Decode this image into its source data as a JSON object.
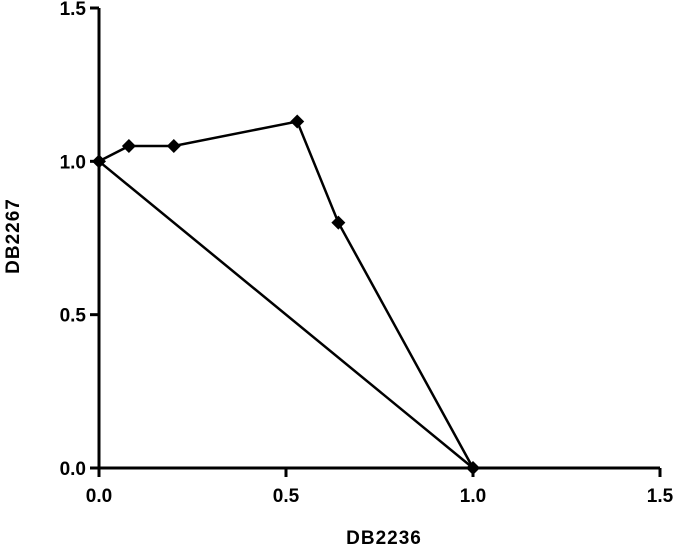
{
  "chart_data": {
    "type": "line",
    "title": "",
    "xlabel": "DB2236",
    "ylabel": "DB2267",
    "xlim": [
      0,
      1.5
    ],
    "ylim": [
      0,
      1.5
    ],
    "x_ticks": [
      "0.0",
      "0.5",
      "1.0",
      "1.5"
    ],
    "y_ticks": [
      "0.0",
      "0.5",
      "1.0",
      "1.5"
    ],
    "grid": false,
    "legend": "none",
    "series": [
      {
        "marker": "diamond",
        "color": "#000000",
        "points": [
          {
            "x": 0.0,
            "y": 1.0
          },
          {
            "x": 0.08,
            "y": 1.05
          },
          {
            "x": 0.2,
            "y": 1.05
          },
          {
            "x": 0.53,
            "y": 1.13
          },
          {
            "x": 0.64,
            "y": 0.8
          },
          {
            "x": 1.0,
            "y": 0.0
          }
        ]
      },
      {
        "marker": "none",
        "color": "#000000",
        "points": [
          {
            "x": 0.0,
            "y": 1.0
          },
          {
            "x": 1.0,
            "y": 0.0
          }
        ]
      }
    ]
  }
}
